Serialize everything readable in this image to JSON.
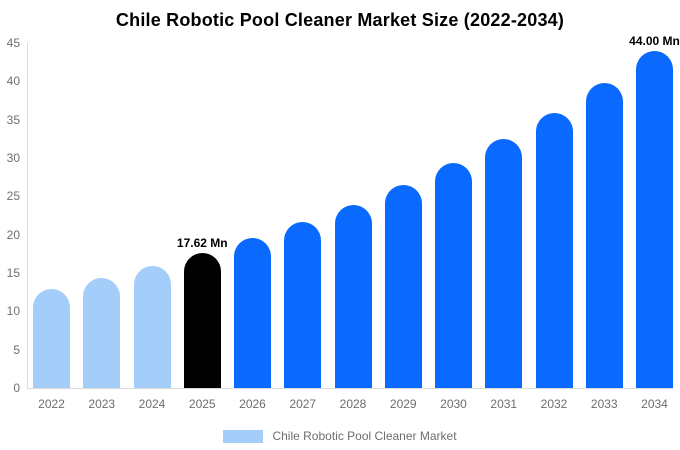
{
  "chart_data": {
    "type": "bar",
    "title": "Chile Robotic Pool Cleaner Market Size (2022-2034)",
    "xlabel": "",
    "ylabel": "",
    "categories": [
      "2022",
      "2023",
      "2024",
      "2025",
      "2026",
      "2027",
      "2028",
      "2029",
      "2030",
      "2031",
      "2032",
      "2033",
      "2034"
    ],
    "values": [
      12.98,
      14.37,
      15.91,
      17.62,
      19.51,
      21.6,
      23.91,
      26.47,
      29.3,
      32.44,
      35.92,
      39.76,
      44.0
    ],
    "bar_colors": [
      "#a5cdfa",
      "#a5cdfa",
      "#a5cdfa",
      "#000000",
      "#0a6aff",
      "#0a6aff",
      "#0a6aff",
      "#0a6aff",
      "#0a6aff",
      "#0a6aff",
      "#0a6aff",
      "#0a6aff",
      "#0a6aff"
    ],
    "data_labels": [
      "",
      "",
      "",
      "17.62 Mn",
      "",
      "",
      "",
      "",
      "",
      "",
      "",
      "",
      "44.00 Mn"
    ],
    "ylim": [
      0,
      45
    ],
    "yticks": [
      0,
      5,
      10,
      15,
      20,
      25,
      30,
      35,
      40,
      45
    ],
    "grid": false,
    "legend_position": "bottom"
  },
  "legend": {
    "label": "Chile Robotic Pool Cleaner Market",
    "swatch_color": "#a5cdfa"
  },
  "colors": {
    "light_blue": "#a5cdfa",
    "bright_blue": "#0a6aff",
    "highlight_black": "#000000",
    "axis_line": "#dcdcdc",
    "tick_text": "#6e6e6e",
    "title_text": "#000000",
    "background": "#ffffff"
  }
}
